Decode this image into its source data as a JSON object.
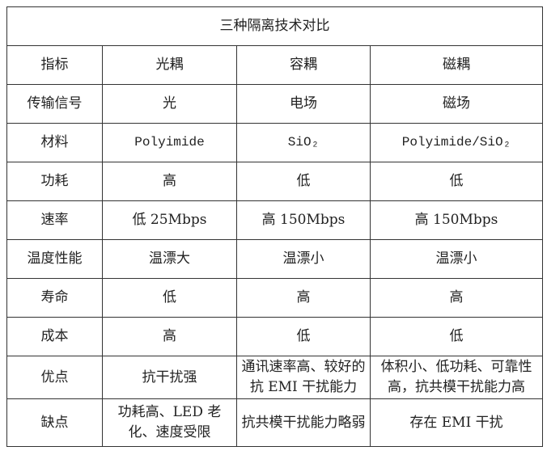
{
  "title": "三种隔离技术对比",
  "header": [
    "指标",
    "光耦",
    "容耦",
    "磁耦"
  ],
  "rows": [
    {
      "label": "传输信号",
      "cells": [
        "光",
        "电场",
        "磁场"
      ]
    },
    {
      "label": "材料",
      "cells": [
        "Polyimide",
        "SiO₂",
        "Polyimide/SiO₂"
      ]
    },
    {
      "label": "功耗",
      "cells": [
        "高",
        "低",
        "低"
      ]
    },
    {
      "label": "速率",
      "cells": [
        "低 25Mbps",
        "高 150Mbps",
        "高 150Mbps"
      ]
    },
    {
      "label": "温度性能",
      "cells": [
        "温漂大",
        "温漂小",
        "温漂小"
      ]
    },
    {
      "label": "寿命",
      "cells": [
        "低",
        "高",
        "高"
      ]
    },
    {
      "label": "成本",
      "cells": [
        "高",
        "低",
        "低"
      ]
    },
    {
      "label": "优点",
      "cells": [
        "抗干扰强",
        "通讯速率高、较好的抗 EMI 干扰能力",
        "体积小、低功耗、可靠性高，抗共模干扰能力高"
      ]
    },
    {
      "label": "缺点",
      "cells": [
        "功耗高、LED 老化、速度受限",
        "抗共模干扰能力略弱",
        "存在 EMI 干扰"
      ]
    }
  ]
}
